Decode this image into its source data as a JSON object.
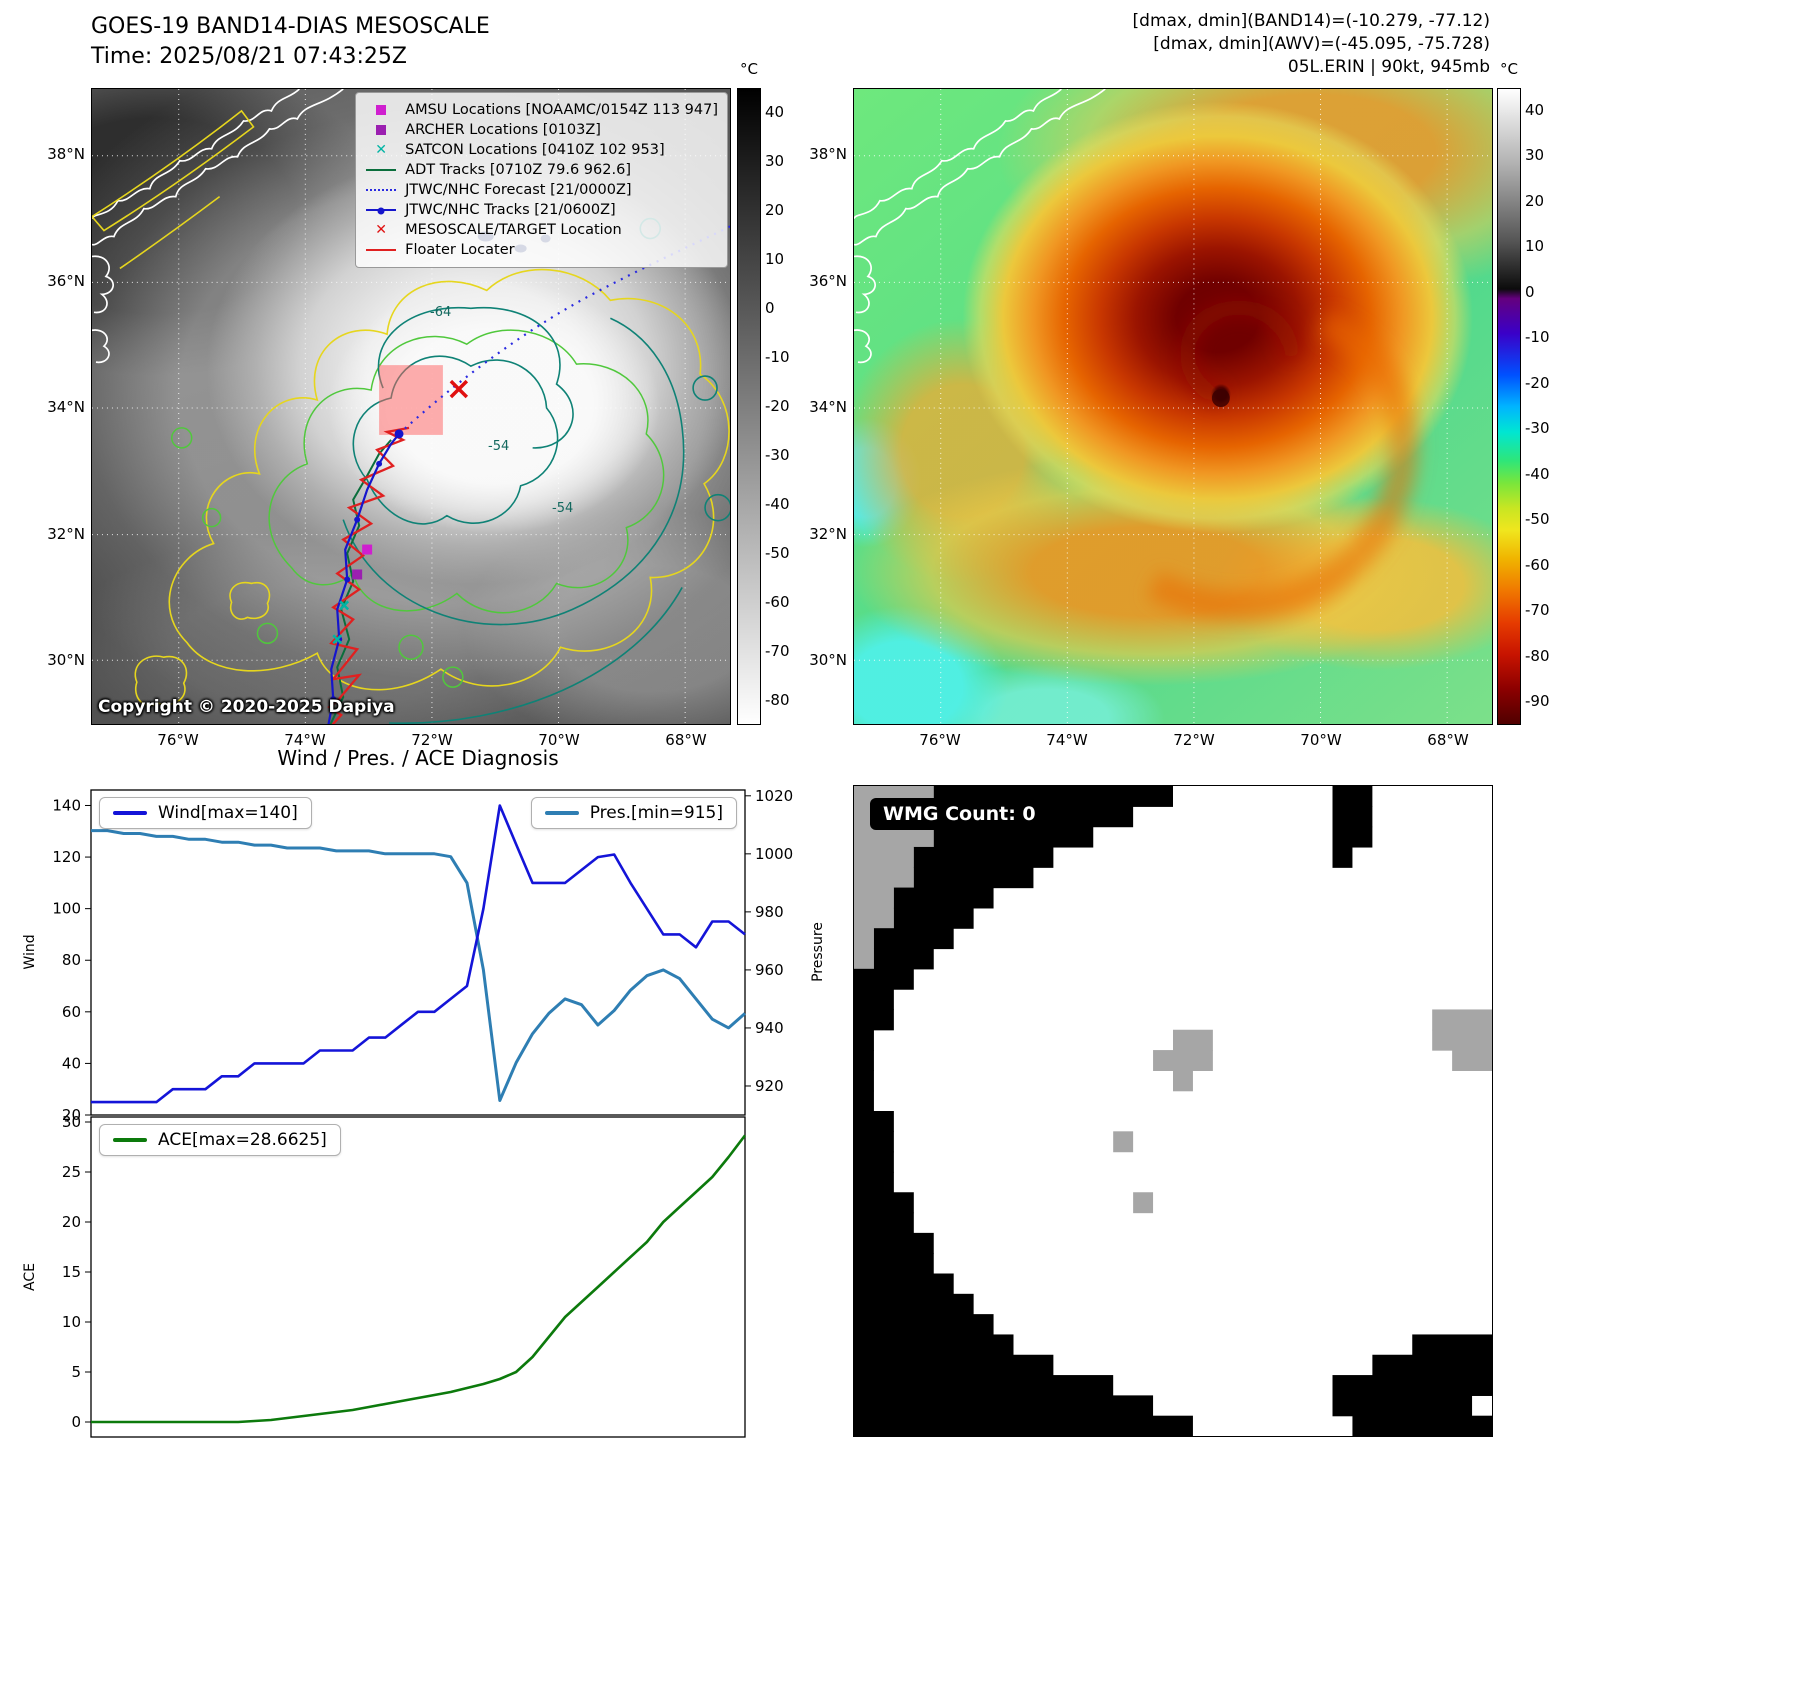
{
  "header": {
    "title": "GOES-19 BAND14-DIAS MESOSCALE",
    "time": "Time: 2025/08/21 07:43:25Z",
    "right_lines": [
      "[dmax, dmin](BAND14)=(-10.279, -77.12)",
      "[dmax, dmin](AWV)=(-45.095, -75.728)",
      "05L.ERIN | 90kt, 945mb"
    ]
  },
  "band14_map": {
    "legend": [
      {
        "label": "AMSU Locations [NOAAMC/0154Z 113 947]",
        "marker": "square",
        "color": "#cf1fcf"
      },
      {
        "label": "ARCHER Locations [0103Z]",
        "marker": "square",
        "color": "#9b1fb0"
      },
      {
        "label": "SATCON Locations [0410Z 102 953]",
        "marker": "x",
        "color": "#00b4a4"
      },
      {
        "label": "ADT Tracks [0710Z 79.6 962.6]",
        "marker": "line",
        "color": "#0a6e3c"
      },
      {
        "label": "JTWC/NHC Forecast [21/0000Z]",
        "marker": "dotted",
        "color": "#2a2ae0"
      },
      {
        "label": "JTWC/NHC Tracks [21/0600Z]",
        "marker": "line-dot",
        "color": "#1515cc"
      },
      {
        "label": "MESOSCALE/TARGET Location",
        "marker": "x",
        "color": "#e01010"
      },
      {
        "label": "Floater Locater",
        "marker": "line",
        "color": "#e02020"
      }
    ],
    "contour_labels": [
      "-64",
      "-54",
      "-54"
    ],
    "copyright": "Copyright © 2020-2025 Dapiya",
    "lat_ticks": [
      "38°N",
      "36°N",
      "34°N",
      "32°N",
      "30°N"
    ],
    "lon_ticks": [
      "76°W",
      "74°W",
      "72°W",
      "70°W",
      "68°W"
    ],
    "colorbar": {
      "unit": "°C",
      "ticks": [
        40,
        30,
        20,
        10,
        0,
        -10,
        -20,
        -30,
        -40,
        -50,
        -60,
        -70,
        -80
      ],
      "range": [
        45,
        -85
      ]
    }
  },
  "awv_map": {
    "lat_ticks": [
      "38°N",
      "36°N",
      "34°N",
      "32°N",
      "30°N"
    ],
    "lon_ticks": [
      "76°W",
      "74°W",
      "72°W",
      "70°W",
      "68°W"
    ],
    "colorbar": {
      "unit": "°C",
      "ticks": [
        40,
        30,
        20,
        10,
        0,
        -10,
        -20,
        -30,
        -40,
        -50,
        -60,
        -70,
        -80,
        -90
      ],
      "range": [
        45,
        -95
      ]
    }
  },
  "charts": {
    "title": "Wind / Pres. / ACE Diagnosis"
  },
  "chart_data": [
    {
      "type": "line",
      "panel": "wind-pressure",
      "title": "Wind / Pres. / ACE Diagnosis",
      "series": [
        {
          "name": "Wind[max=140]",
          "color": "#1414d8",
          "axis": "left",
          "values": [
            25,
            25,
            25,
            25,
            25,
            30,
            30,
            30,
            35,
            35,
            40,
            40,
            40,
            40,
            45,
            45,
            45,
            50,
            50,
            55,
            60,
            60,
            65,
            70,
            100,
            140,
            125,
            110,
            110,
            110,
            115,
            120,
            121,
            110,
            100,
            90,
            90,
            85,
            95,
            95,
            90
          ]
        },
        {
          "name": "Pres.[min=915]",
          "color": "#2e7eb3",
          "axis": "right",
          "values": [
            1008,
            1008,
            1007,
            1007,
            1006,
            1006,
            1005,
            1005,
            1004,
            1004,
            1003,
            1003,
            1002,
            1002,
            1002,
            1001,
            1001,
            1001,
            1000,
            1000,
            1000,
            1000,
            999,
            990,
            960,
            915,
            928,
            938,
            945,
            950,
            948,
            941,
            946,
            953,
            958,
            960,
            957,
            950,
            943,
            940,
            945
          ]
        }
      ],
      "left_axis": {
        "label": "Wind",
        "ticks": [
          140,
          120,
          100,
          80,
          60,
          40,
          20
        ],
        "range": [
          20,
          146
        ]
      },
      "right_axis": {
        "label": "Pressure",
        "ticks": [
          1020,
          1000,
          980,
          960,
          940,
          920
        ],
        "range": [
          910,
          1022
        ]
      },
      "x_axis": {
        "ticks": []
      },
      "grid": false,
      "legend_position": "top-left and top-right"
    },
    {
      "type": "line",
      "panel": "ace",
      "series": [
        {
          "name": "ACE[max=28.6625]",
          "color": "#0c7a0c",
          "axis": "left",
          "values": [
            0,
            0,
            0,
            0,
            0,
            0,
            0,
            0,
            0,
            0,
            0.1,
            0.2,
            0.4,
            0.6,
            0.8,
            1,
            1.2,
            1.5,
            1.8,
            2.1,
            2.4,
            2.7,
            3,
            3.4,
            3.8,
            4.3,
            5,
            6.5,
            8.5,
            10.5,
            12,
            13.5,
            15,
            16.5,
            18,
            20,
            21.5,
            23,
            24.5,
            26.5,
            28.6625
          ]
        }
      ],
      "left_axis": {
        "label": "ACE",
        "ticks": [
          30,
          25,
          20,
          15,
          10,
          5,
          0
        ],
        "range": [
          -1.5,
          30.5
        ]
      },
      "x_axis": {
        "ticks": []
      },
      "grid": false,
      "legend_position": "top-left"
    }
  ],
  "wmg": {
    "label": "WMG Count: 0"
  }
}
